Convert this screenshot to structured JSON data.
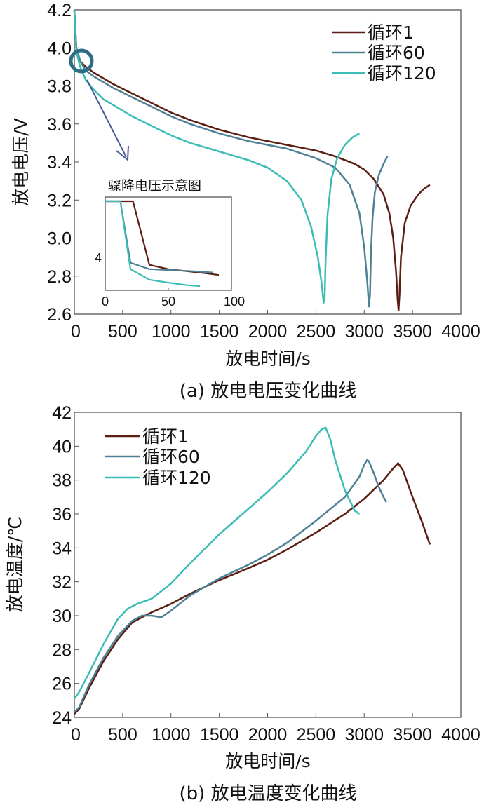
{
  "colors": {
    "cycle1": "#5a1e12",
    "cycle60": "#4f8196",
    "cycle120": "#3bbcb6",
    "marker": "#2f6c86",
    "arrow": "#4a5a9a"
  },
  "chart_data": [
    {
      "type": "line",
      "caption": "(a) 放电电压变化曲线",
      "xlabel": "放电时间/s",
      "ylabel": "放电电压/V",
      "xlim": [
        0,
        4000
      ],
      "ylim": [
        2.6,
        4.2
      ],
      "xticks": [
        0,
        500,
        1000,
        1500,
        2000,
        2500,
        3000,
        3500,
        4000
      ],
      "yticks": [
        2.6,
        2.8,
        3.0,
        3.2,
        3.4,
        3.6,
        3.8,
        4.0,
        4.2
      ],
      "ytick_labels": [
        "2.6",
        "2.8",
        "3.0",
        "3.2",
        "3.4",
        "3.6",
        "3.8",
        "4.0",
        "4.2"
      ],
      "legend_position": "top-right",
      "series": [
        {
          "name": "循环1",
          "color_key": "cycle1",
          "x": [
            0,
            20,
            60,
            120,
            200,
            400,
            600,
            800,
            1000,
            1200,
            1500,
            1800,
            2000,
            2200,
            2500,
            2700,
            2900,
            3000,
            3100,
            3200,
            3260,
            3300,
            3330,
            3345,
            3355,
            3365,
            3380,
            3420,
            3480,
            3560,
            3620,
            3680
          ],
          "y": [
            4.2,
            4.0,
            3.93,
            3.9,
            3.87,
            3.81,
            3.76,
            3.71,
            3.66,
            3.62,
            3.57,
            3.53,
            3.51,
            3.49,
            3.46,
            3.43,
            3.39,
            3.36,
            3.31,
            3.23,
            3.13,
            3.0,
            2.82,
            2.68,
            2.62,
            2.7,
            2.9,
            3.08,
            3.17,
            3.23,
            3.26,
            3.28
          ]
        },
        {
          "name": "循环60",
          "color_key": "cycle60",
          "x": [
            0,
            20,
            60,
            120,
            200,
            400,
            600,
            800,
            1000,
            1200,
            1500,
            1800,
            2000,
            2200,
            2500,
            2700,
            2850,
            2950,
            3000,
            3030,
            3050,
            3060,
            3070,
            3085,
            3110,
            3150,
            3200,
            3240
          ],
          "y": [
            4.2,
            4.0,
            3.93,
            3.88,
            3.85,
            3.79,
            3.74,
            3.69,
            3.64,
            3.6,
            3.55,
            3.51,
            3.49,
            3.47,
            3.42,
            3.37,
            3.28,
            3.13,
            2.95,
            2.78,
            2.64,
            2.7,
            2.92,
            3.1,
            3.24,
            3.33,
            3.39,
            3.43
          ]
        },
        {
          "name": "循环120",
          "color_key": "cycle120",
          "x": [
            0,
            20,
            60,
            120,
            200,
            300,
            400,
            500,
            600,
            800,
            1000,
            1200,
            1400,
            1600,
            1800,
            2000,
            2200,
            2350,
            2450,
            2520,
            2560,
            2580,
            2590,
            2600,
            2620,
            2660,
            2720,
            2800,
            2880,
            2950
          ],
          "y": [
            4.2,
            3.98,
            3.9,
            3.83,
            3.78,
            3.73,
            3.7,
            3.67,
            3.64,
            3.59,
            3.54,
            3.5,
            3.47,
            3.44,
            3.41,
            3.37,
            3.3,
            3.2,
            3.06,
            2.9,
            2.76,
            2.66,
            2.68,
            2.88,
            3.12,
            3.31,
            3.42,
            3.49,
            3.53,
            3.55
          ]
        }
      ],
      "inset": {
        "title": "骤降电压示意图",
        "xlim": [
          0,
          100
        ],
        "xticks": [
          0,
          50,
          100
        ],
        "ytick_labels": [
          "4"
        ],
        "series": [
          {
            "name": "循环1",
            "color_key": "cycle1",
            "x": [
              0,
              22,
              35,
              50,
              65,
              80,
              90
            ],
            "y": [
              4.6,
              4.6,
              3.1,
              3.0,
              2.95,
              2.9,
              2.86
            ]
          },
          {
            "name": "循环60",
            "color_key": "cycle60",
            "x": [
              0,
              12,
              20,
              35,
              50,
              70,
              85
            ],
            "y": [
              4.6,
              4.6,
              3.15,
              3.0,
              2.98,
              2.95,
              2.92
            ]
          },
          {
            "name": "循环120",
            "color_key": "cycle120",
            "x": [
              0,
              12,
              20,
              35,
              50,
              65,
              75
            ],
            "y": [
              4.6,
              4.6,
              3.0,
              2.75,
              2.68,
              2.62,
              2.6
            ]
          }
        ]
      }
    },
    {
      "type": "line",
      "caption": "(b) 放电温度变化曲线",
      "xlabel": "放电时间/s",
      "ylabel": "放电温度/℃",
      "xlim": [
        0,
        4000
      ],
      "ylim": [
        24,
        42
      ],
      "xticks": [
        0,
        500,
        1000,
        1500,
        2000,
        2500,
        3000,
        3500,
        4000
      ],
      "yticks": [
        24,
        26,
        28,
        30,
        32,
        34,
        36,
        38,
        40,
        42
      ],
      "ytick_labels": [
        "24",
        "26",
        "28",
        "30",
        "32",
        "34",
        "36",
        "38",
        "40",
        "42"
      ],
      "legend_position": "top-left",
      "series": [
        {
          "name": "循环1",
          "color_key": "cycle1",
          "x": [
            0,
            50,
            150,
            300,
            450,
            600,
            700,
            800,
            1000,
            1200,
            1500,
            1800,
            2000,
            2200,
            2500,
            2800,
            3000,
            3200,
            3300,
            3350,
            3400,
            3500,
            3600,
            3680
          ],
          "y": [
            24.2,
            24.5,
            25.7,
            27.3,
            28.6,
            29.6,
            29.9,
            30.2,
            30.7,
            31.3,
            32.1,
            32.8,
            33.3,
            33.9,
            34.9,
            36.0,
            36.9,
            38.0,
            38.7,
            39.0,
            38.6,
            37.0,
            35.5,
            34.2
          ]
        },
        {
          "name": "循环60",
          "color_key": "cycle60",
          "x": [
            0,
            50,
            150,
            300,
            450,
            600,
            700,
            800,
            900,
            1000,
            1200,
            1500,
            1800,
            2000,
            2200,
            2500,
            2800,
            2950,
            3000,
            3030,
            3050,
            3100,
            3150,
            3200,
            3230
          ],
          "y": [
            24.3,
            24.6,
            25.9,
            27.5,
            28.8,
            29.7,
            30.0,
            30.0,
            29.9,
            30.3,
            31.2,
            32.2,
            33.0,
            33.6,
            34.3,
            35.6,
            37.0,
            38.2,
            38.9,
            39.2,
            39.1,
            38.4,
            37.6,
            37.0,
            36.7
          ]
        },
        {
          "name": "循环120",
          "color_key": "cycle120",
          "x": [
            0,
            50,
            150,
            300,
            450,
            550,
            650,
            800,
            1000,
            1200,
            1500,
            1800,
            2000,
            2200,
            2400,
            2500,
            2560,
            2600,
            2650,
            2700,
            2800,
            2900,
            2950
          ],
          "y": [
            25.1,
            25.5,
            26.6,
            28.3,
            29.8,
            30.4,
            30.7,
            31.0,
            31.9,
            33.1,
            34.8,
            36.3,
            37.3,
            38.4,
            39.7,
            40.6,
            41.0,
            41.1,
            40.4,
            39.2,
            37.4,
            36.2,
            36.0
          ]
        }
      ]
    }
  ]
}
